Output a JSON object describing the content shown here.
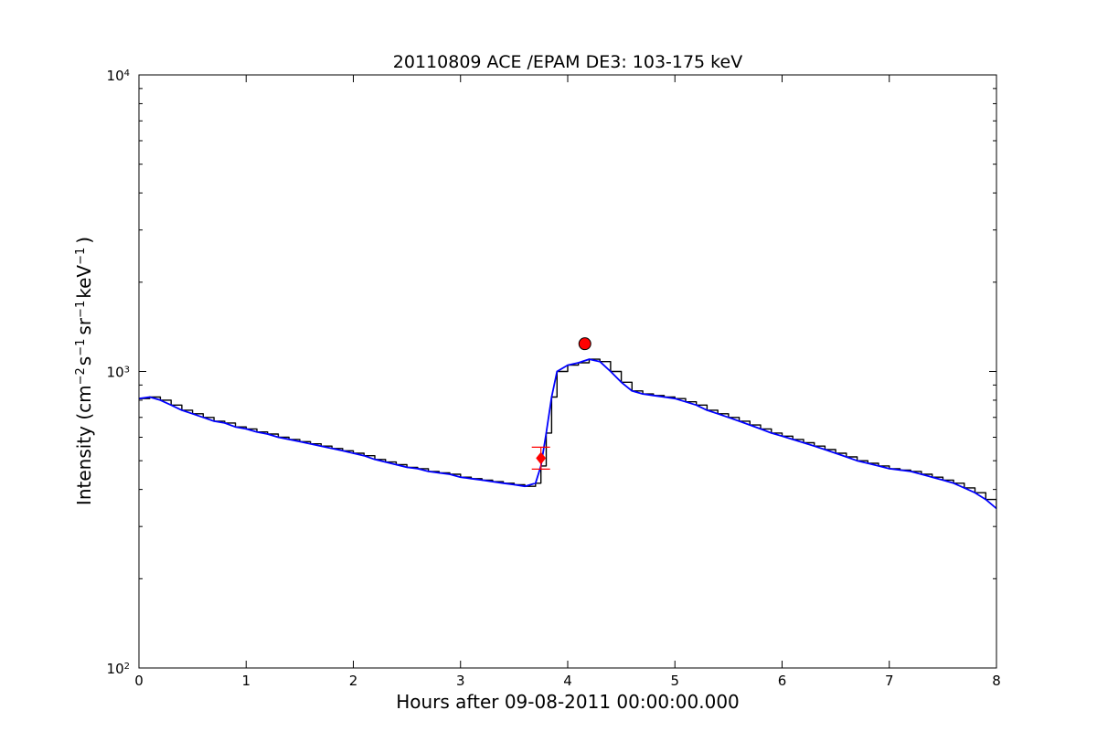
{
  "chart_data": {
    "type": "line",
    "title": "20110809 ACE /EPAM DE3: 103-175 keV",
    "xlabel": "Hours after 09-08-2011 00:00:00.000",
    "ylabel": {
      "prefix": "Intensity (cm",
      "exp1": "−2",
      "s": "s",
      "exp2": "−1",
      "sr": "sr",
      "exp3": "−1",
      "kev": "keV",
      "exp4": "−1",
      "suffix": ")"
    },
    "xlim": [
      0,
      8
    ],
    "ylim": [
      100,
      10000
    ],
    "yscale": "log",
    "xticks": [
      0,
      1,
      2,
      3,
      4,
      5,
      6,
      7,
      8
    ],
    "xtick_labels": [
      "0",
      "1",
      "2",
      "3",
      "4",
      "5",
      "6",
      "7",
      "8"
    ],
    "yticks": [
      100,
      1000,
      10000
    ],
    "ytick_labels": [
      {
        "base": "10",
        "exp": "2"
      },
      {
        "base": "10",
        "exp": "3"
      },
      {
        "base": "10",
        "exp": "4"
      }
    ],
    "grid": false,
    "series": [
      {
        "role": "raw",
        "color": "#000000",
        "x": [
          0,
          0.1,
          0.2,
          0.3,
          0.4,
          0.5,
          0.6,
          0.7,
          0.8,
          0.9,
          1.0,
          1.1,
          1.2,
          1.3,
          1.4,
          1.5,
          1.6,
          1.7,
          1.8,
          1.9,
          2.0,
          2.1,
          2.2,
          2.3,
          2.4,
          2.5,
          2.6,
          2.7,
          2.8,
          2.9,
          3.0,
          3.1,
          3.2,
          3.3,
          3.4,
          3.5,
          3.6,
          3.7,
          3.75,
          3.8,
          3.85,
          3.9,
          4.0,
          4.1,
          4.2,
          4.3,
          4.4,
          4.5,
          4.6,
          4.7,
          4.8,
          4.9,
          5.0,
          5.1,
          5.2,
          5.3,
          5.4,
          5.5,
          5.6,
          5.7,
          5.8,
          5.9,
          6.0,
          6.1,
          6.2,
          6.3,
          6.4,
          6.5,
          6.6,
          6.7,
          6.8,
          6.9,
          7.0,
          7.1,
          7.2,
          7.3,
          7.4,
          7.5,
          7.6,
          7.7,
          7.8,
          7.9,
          8.0
        ],
        "y": [
          810,
          820,
          800,
          770,
          740,
          720,
          700,
          680,
          670,
          650,
          640,
          625,
          615,
          600,
          590,
          580,
          570,
          560,
          550,
          540,
          530,
          520,
          505,
          495,
          485,
          475,
          470,
          460,
          455,
          450,
          440,
          435,
          430,
          425,
          420,
          415,
          410,
          420,
          480,
          620,
          820,
          1000,
          1050,
          1070,
          1100,
          1080,
          1000,
          920,
          860,
          840,
          830,
          820,
          810,
          790,
          770,
          740,
          720,
          700,
          680,
          660,
          640,
          620,
          605,
          590,
          575,
          560,
          545,
          530,
          515,
          500,
          490,
          480,
          470,
          465,
          460,
          450,
          440,
          430,
          420,
          405,
          390,
          370,
          345
        ]
      },
      {
        "role": "smoothed",
        "color": "#0000ff",
        "x": [
          0,
          0.1,
          0.2,
          0.3,
          0.4,
          0.5,
          0.6,
          0.7,
          0.8,
          0.9,
          1.0,
          1.1,
          1.2,
          1.3,
          1.4,
          1.5,
          1.6,
          1.7,
          1.8,
          1.9,
          2.0,
          2.1,
          2.2,
          2.3,
          2.4,
          2.5,
          2.6,
          2.7,
          2.8,
          2.9,
          3.0,
          3.1,
          3.2,
          3.3,
          3.4,
          3.5,
          3.6,
          3.7,
          3.75,
          3.8,
          3.85,
          3.9,
          4.0,
          4.1,
          4.2,
          4.3,
          4.4,
          4.5,
          4.6,
          4.7,
          4.8,
          4.9,
          5.0,
          5.1,
          5.2,
          5.3,
          5.4,
          5.5,
          5.6,
          5.7,
          5.8,
          5.9,
          6.0,
          6.1,
          6.2,
          6.3,
          6.4,
          6.5,
          6.6,
          6.7,
          6.8,
          6.9,
          7.0,
          7.1,
          7.2,
          7.3,
          7.4,
          7.5,
          7.6,
          7.7,
          7.8,
          7.9,
          8.0
        ],
        "y": [
          810,
          820,
          800,
          770,
          740,
          720,
          700,
          680,
          670,
          650,
          640,
          625,
          615,
          600,
          590,
          580,
          570,
          560,
          550,
          540,
          530,
          520,
          505,
          495,
          485,
          475,
          470,
          460,
          455,
          450,
          440,
          435,
          430,
          425,
          420,
          415,
          410,
          420,
          480,
          620,
          820,
          1000,
          1050,
          1070,
          1100,
          1080,
          1000,
          920,
          860,
          840,
          830,
          820,
          810,
          790,
          770,
          740,
          720,
          700,
          680,
          660,
          640,
          620,
          605,
          590,
          575,
          560,
          545,
          530,
          515,
          500,
          490,
          480,
          470,
          465,
          460,
          450,
          440,
          430,
          420,
          405,
          390,
          370,
          345
        ]
      }
    ],
    "markers": [
      {
        "type": "diamond",
        "color": "#ff0000",
        "x": 3.75,
        "y": 510,
        "errorbar": true
      },
      {
        "type": "circle",
        "color": "#ff0000",
        "x": 4.16,
        "y": 1240
      }
    ]
  }
}
